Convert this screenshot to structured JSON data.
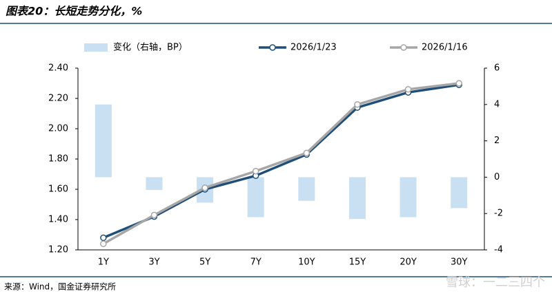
{
  "title": "图表20：长短走势分化，%",
  "source": "来源：Wind，国金证券研究所",
  "watermark": "雪球：一二三四个",
  "chart_data": {
    "type": "combo",
    "categories": [
      "1Y",
      "3Y",
      "5Y",
      "7Y",
      "10Y",
      "15Y",
      "20Y",
      "30Y"
    ],
    "series": [
      {
        "name": "变化（右轴，BP）",
        "type": "bar",
        "axis": "y2",
        "color": "#c9dff2",
        "values": [
          4.0,
          -0.7,
          -1.4,
          -2.2,
          -1.3,
          -2.3,
          -2.2,
          -1.7
        ]
      },
      {
        "name": "2026/1/23",
        "type": "line",
        "color": "#1f4e79",
        "values": [
          1.28,
          1.42,
          1.6,
          1.69,
          1.83,
          2.14,
          2.24,
          2.29
        ]
      },
      {
        "name": "2026/1/16",
        "type": "line",
        "color": "#a6a6a6",
        "values": [
          1.24,
          1.43,
          1.61,
          1.72,
          1.84,
          2.16,
          2.26,
          2.3
        ]
      }
    ],
    "ylim": [
      1.2,
      2.4
    ],
    "yticks": [
      {
        "value": 1.2,
        "label": "1.20"
      },
      {
        "value": 1.4,
        "label": "1.40"
      },
      {
        "value": 1.6,
        "label": "1.60"
      },
      {
        "value": 1.8,
        "label": "1.80"
      },
      {
        "value": 2.0,
        "label": "2.00"
      },
      {
        "value": 2.2,
        "label": "2.20"
      },
      {
        "value": 2.4,
        "label": "2.40"
      }
    ],
    "y2lim": [
      -4,
      6
    ],
    "y2ticks": [
      -4,
      -2,
      0,
      2,
      4,
      6
    ],
    "grid": false
  }
}
